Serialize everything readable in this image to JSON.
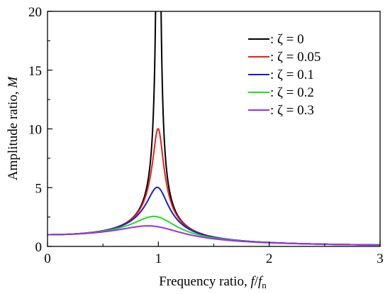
{
  "chart_data": {
    "type": "line",
    "xlabel": "Frequency ratio, ",
    "xlabel_var_f": "f",
    "xlabel_slash": "/",
    "xlabel_var_fn": "f",
    "xlabel_sub_n": "n",
    "ylabel": "Amplitude ratio, ",
    "ylabel_var": "M",
    "xlim": [
      0,
      3
    ],
    "ylim": [
      0,
      20
    ],
    "x_ticks": [
      "0",
      "1",
      "2",
      "3"
    ],
    "y_ticks": [
      "0",
      "5",
      "10",
      "15",
      "20"
    ],
    "grid": false,
    "legend_position": "top-right",
    "series": [
      {
        "name": ": ζ = 0",
        "zeta": 0,
        "color": "#000000"
      },
      {
        "name": ": ζ = 0.05",
        "zeta": 0.05,
        "color": "#e8211b"
      },
      {
        "name": ": ζ = 0.1",
        "zeta": 0.1,
        "color": "#1a1adb"
      },
      {
        "name": ": ζ = 0.2",
        "zeta": 0.2,
        "color": "#22dd22"
      },
      {
        "name": ": ζ = 0.3",
        "zeta": 0.3,
        "color": "#9b30e0"
      }
    ]
  }
}
